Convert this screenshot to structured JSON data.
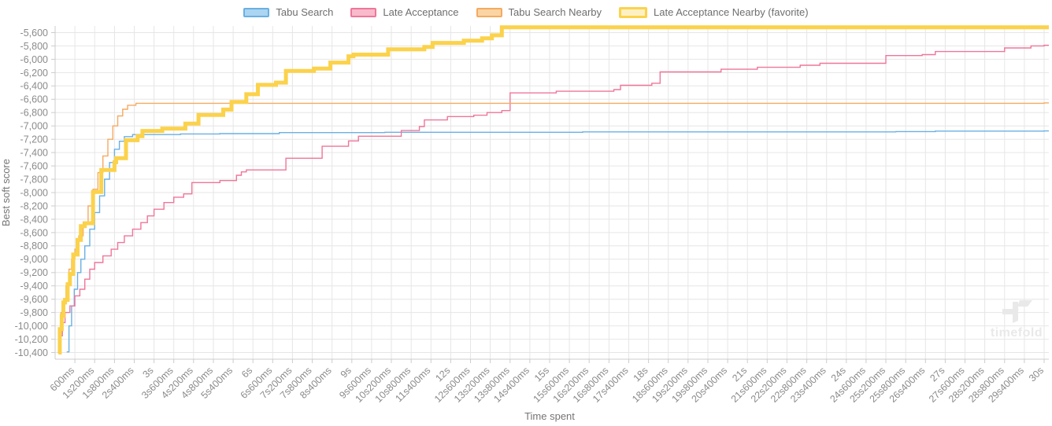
{
  "watermark": {
    "text": "timefold"
  },
  "chart_data": {
    "type": "line",
    "stepped": true,
    "title": "",
    "xlabel": "Time spent",
    "ylabel": "Best soft score",
    "xlim_seconds": [
      0,
      30
    ],
    "ylim": [
      -10500,
      -5500
    ],
    "grid": true,
    "legend_position": "top",
    "x_tick_step_s": 0.6,
    "x_tick_count": 50,
    "x_tick_labels": [
      "600ms",
      "1s200ms",
      "1s800ms",
      "2s400ms",
      "3s",
      "3s600ms",
      "4s200ms",
      "4s800ms",
      "5s400ms",
      "6s",
      "6s600ms",
      "7s200ms",
      "7s800ms",
      "8s400ms",
      "9s",
      "9s600ms",
      "10s200ms",
      "10s800ms",
      "11s400ms",
      "12s",
      "12s600ms",
      "13s200ms",
      "13s800ms",
      "14s400ms",
      "15s",
      "15s600ms",
      "16s200ms",
      "16s800ms",
      "17s400ms",
      "18s",
      "18s600ms",
      "19s200ms",
      "19s800ms",
      "20s400ms",
      "21s",
      "21s600ms",
      "22s200ms",
      "22s800ms",
      "23s400ms",
      "24s",
      "24s600ms",
      "25s200ms",
      "25s800ms",
      "26s400ms",
      "27s",
      "27s600ms",
      "28s200ms",
      "28s800ms",
      "29s400ms",
      "30s"
    ],
    "y_tick_start": -5600,
    "y_tick_step": -200,
    "y_tick_count": 25,
    "y_tick_labels": [
      "-5,600",
      "-5,800",
      "-6,000",
      "-6,200",
      "-6,400",
      "-6,600",
      "-6,800",
      "-7,000",
      "-7,200",
      "-7,400",
      "-7,600",
      "-7,800",
      "-8,000",
      "-8,200",
      "-8,400",
      "-8,600",
      "-8,800",
      "-9,000",
      "-9,200",
      "-9,400",
      "-9,600",
      "-9,800",
      "-10,000",
      "-10,200",
      "-10,400"
    ],
    "colors": {
      "grid": "#e6e6e6",
      "axis": "#cccccc",
      "tick_label": "#8b8b8b",
      "axis_title": "#757575",
      "legend_text": "#6e6e6e",
      "watermark": "#e9e9e9"
    },
    "series": [
      {
        "name": "Tabu Search",
        "slug": "tabu-search",
        "color": "#6ab0e3",
        "fill": "#abd5f1",
        "line_width": 1.4,
        "favorite": false,
        "points": [
          [
            0.35,
            -10390
          ],
          [
            0.42,
            -10000
          ],
          [
            0.5,
            -9700
          ],
          [
            0.58,
            -9450
          ],
          [
            0.68,
            -9200
          ],
          [
            0.78,
            -9000
          ],
          [
            0.9,
            -8800
          ],
          [
            1.05,
            -8550
          ],
          [
            1.2,
            -8300
          ],
          [
            1.35,
            -8050
          ],
          [
            1.5,
            -7800
          ],
          [
            1.65,
            -7550
          ],
          [
            1.8,
            -7350
          ],
          [
            1.95,
            -7230
          ],
          [
            2.1,
            -7160
          ],
          [
            2.35,
            -7130
          ],
          [
            3.8,
            -7120
          ],
          [
            5.0,
            -7115
          ],
          [
            6.8,
            -7100
          ],
          [
            10.0,
            -7095
          ],
          [
            16.0,
            -7090
          ],
          [
            25.5,
            -7085
          ],
          [
            26.7,
            -7078
          ],
          [
            30,
            -7075
          ]
        ]
      },
      {
        "name": "Late Acceptance",
        "slug": "late-acceptance",
        "color": "#ef7699",
        "fill": "#f9bacc",
        "line_width": 1.4,
        "favorite": false,
        "points": [
          [
            0.1,
            -10400
          ],
          [
            0.15,
            -10150
          ],
          [
            0.22,
            -9950
          ],
          [
            0.3,
            -9800
          ],
          [
            0.45,
            -9700
          ],
          [
            0.6,
            -9550
          ],
          [
            0.75,
            -9450
          ],
          [
            0.9,
            -9300
          ],
          [
            1.05,
            -9150
          ],
          [
            1.2,
            -9050
          ],
          [
            1.45,
            -8950
          ],
          [
            1.7,
            -8850
          ],
          [
            1.9,
            -8750
          ],
          [
            2.1,
            -8650
          ],
          [
            2.35,
            -8550
          ],
          [
            2.6,
            -8450
          ],
          [
            2.8,
            -8350
          ],
          [
            3.0,
            -8250
          ],
          [
            3.3,
            -8150
          ],
          [
            3.6,
            -8070
          ],
          [
            3.9,
            -8020
          ],
          [
            4.15,
            -7850
          ],
          [
            5.0,
            -7820
          ],
          [
            5.5,
            -7740
          ],
          [
            5.65,
            -7690
          ],
          [
            5.8,
            -7660
          ],
          [
            7.0,
            -7485
          ],
          [
            8.1,
            -7305
          ],
          [
            8.9,
            -7225
          ],
          [
            9.2,
            -7155
          ],
          [
            10.5,
            -7070
          ],
          [
            11.05,
            -7010
          ],
          [
            11.2,
            -6910
          ],
          [
            11.9,
            -6860
          ],
          [
            12.7,
            -6840
          ],
          [
            13.1,
            -6800
          ],
          [
            13.55,
            -6770
          ],
          [
            13.8,
            -6505
          ],
          [
            15.2,
            -6480
          ],
          [
            16.95,
            -6455
          ],
          [
            17.15,
            -6390
          ],
          [
            18.1,
            -6360
          ],
          [
            18.35,
            -6190
          ],
          [
            20.2,
            -6150
          ],
          [
            21.3,
            -6120
          ],
          [
            22.6,
            -6090
          ],
          [
            23.2,
            -6060
          ],
          [
            25.2,
            -5945
          ],
          [
            26.3,
            -5930
          ],
          [
            26.7,
            -5885
          ],
          [
            28.8,
            -5830
          ],
          [
            29.6,
            -5800
          ],
          [
            30,
            -5790
          ]
        ]
      },
      {
        "name": "Tabu Search Nearby",
        "slug": "tabu-search-nearby",
        "color": "#f5aa60",
        "fill": "#fbd4a4",
        "line_width": 1.4,
        "favorite": false,
        "points": [
          [
            0.08,
            -10400
          ],
          [
            0.12,
            -10050
          ],
          [
            0.18,
            -9800
          ],
          [
            0.25,
            -9650
          ],
          [
            0.33,
            -9400
          ],
          [
            0.42,
            -9150
          ],
          [
            0.5,
            -9000
          ],
          [
            0.6,
            -8850
          ],
          [
            0.72,
            -8650
          ],
          [
            0.85,
            -8450
          ],
          [
            1.0,
            -8200
          ],
          [
            1.15,
            -7950
          ],
          [
            1.3,
            -7700
          ],
          [
            1.45,
            -7450
          ],
          [
            1.6,
            -7200
          ],
          [
            1.75,
            -7000
          ],
          [
            1.9,
            -6850
          ],
          [
            2.05,
            -6750
          ],
          [
            2.2,
            -6690
          ],
          [
            2.45,
            -6660
          ],
          [
            30,
            -6655
          ]
        ]
      },
      {
        "name": "Late Acceptance Nearby (favorite)",
        "slug": "late-acceptance-nearby",
        "color": "#fbd24b",
        "fill": "#fdf1c4",
        "line_width": 5,
        "favorite": true,
        "points": [
          [
            0.1,
            -10400
          ],
          [
            0.14,
            -10050
          ],
          [
            0.2,
            -9850
          ],
          [
            0.25,
            -9650
          ],
          [
            0.3,
            -9610
          ],
          [
            0.38,
            -9375
          ],
          [
            0.45,
            -9220
          ],
          [
            0.55,
            -8930
          ],
          [
            0.68,
            -8710
          ],
          [
            0.78,
            -8505
          ],
          [
            0.9,
            -8460
          ],
          [
            1.15,
            -7990
          ],
          [
            1.4,
            -7660
          ],
          [
            1.8,
            -7545
          ],
          [
            1.85,
            -7485
          ],
          [
            2.15,
            -7215
          ],
          [
            2.5,
            -7155
          ],
          [
            2.65,
            -7075
          ],
          [
            3.25,
            -7040
          ],
          [
            3.95,
            -6965
          ],
          [
            4.35,
            -6835
          ],
          [
            5.1,
            -6755
          ],
          [
            5.35,
            -6640
          ],
          [
            5.8,
            -6525
          ],
          [
            6.15,
            -6385
          ],
          [
            6.7,
            -6350
          ],
          [
            7.0,
            -6175
          ],
          [
            7.85,
            -6140
          ],
          [
            8.35,
            -6050
          ],
          [
            8.9,
            -5955
          ],
          [
            9.05,
            -5930
          ],
          [
            10.1,
            -5850
          ],
          [
            11.2,
            -5815
          ],
          [
            11.45,
            -5755
          ],
          [
            12.4,
            -5720
          ],
          [
            12.95,
            -5685
          ],
          [
            13.25,
            -5640
          ],
          [
            13.55,
            -5520
          ],
          [
            30,
            -5520
          ]
        ]
      }
    ]
  }
}
